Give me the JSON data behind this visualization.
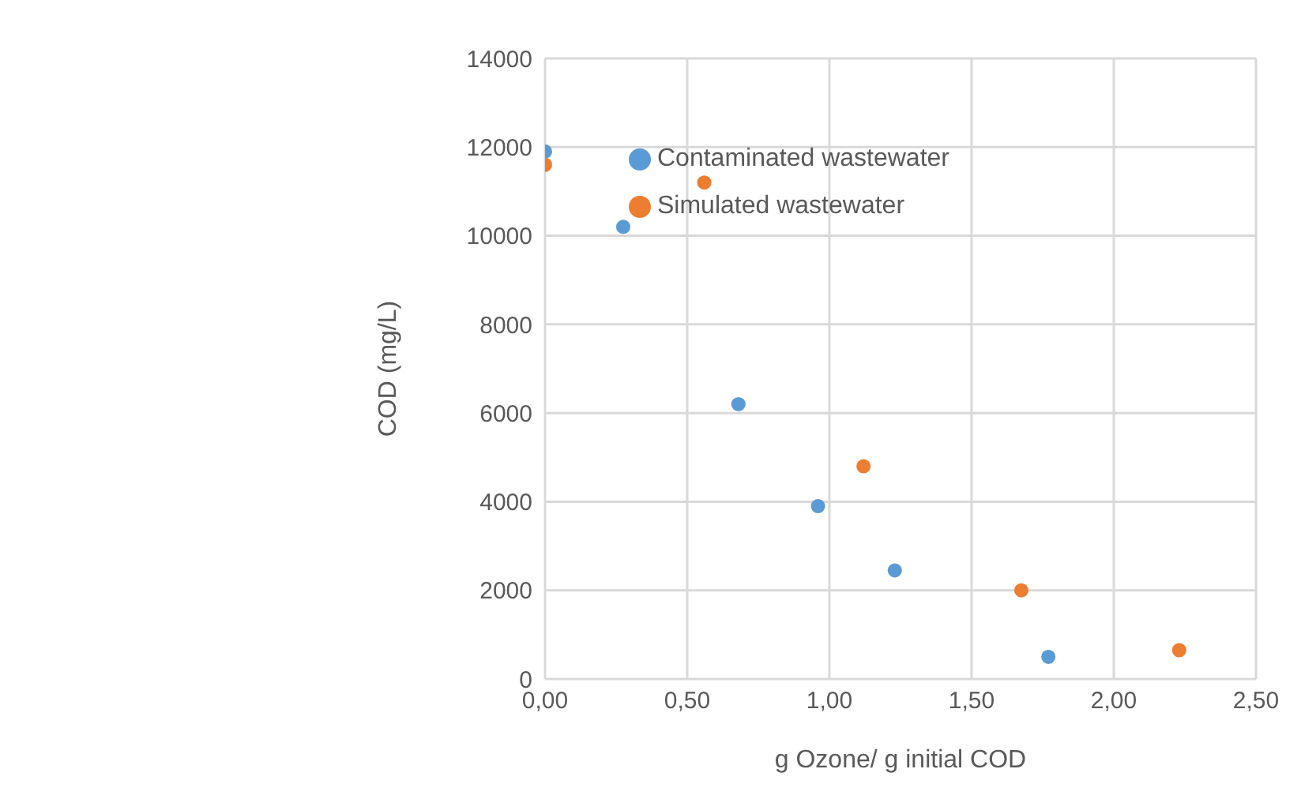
{
  "chart_data": {
    "type": "scatter",
    "xlabel": "g Ozone/ g initial COD",
    "ylabel": "COD (mg/L)",
    "series": [
      {
        "name": "Contaminated wastewater",
        "color": "#5b9bd5",
        "x": [
          0,
          0.275,
          0.68,
          0.96,
          1.23,
          1.77
        ],
        "values": [
          11900,
          10200,
          6200,
          3900,
          2450,
          500
        ]
      },
      {
        "name": "Simulated wastewater",
        "color": "#ed7d31",
        "x": [
          0,
          0.56,
          1.12,
          1.675,
          2.23
        ],
        "values": [
          11600,
          11200,
          4800,
          2000,
          650
        ]
      }
    ],
    "xlim": [
      0,
      2.5
    ],
    "xticks": [
      {
        "value": 0,
        "label": "0,00"
      },
      {
        "value": 0.5,
        "label": "0,50"
      },
      {
        "value": 1,
        "label": "1,00"
      },
      {
        "value": 1.5,
        "label": "1,50"
      },
      {
        "value": 2,
        "label": "2,00"
      },
      {
        "value": 2.5,
        "label": "2,50"
      }
    ],
    "ylim": [
      0,
      14000
    ],
    "yticks": [
      0,
      2000,
      4000,
      6000,
      8000,
      10000,
      12000,
      14000
    ],
    "grid": true,
    "legend": "top",
    "marker": "circle"
  }
}
